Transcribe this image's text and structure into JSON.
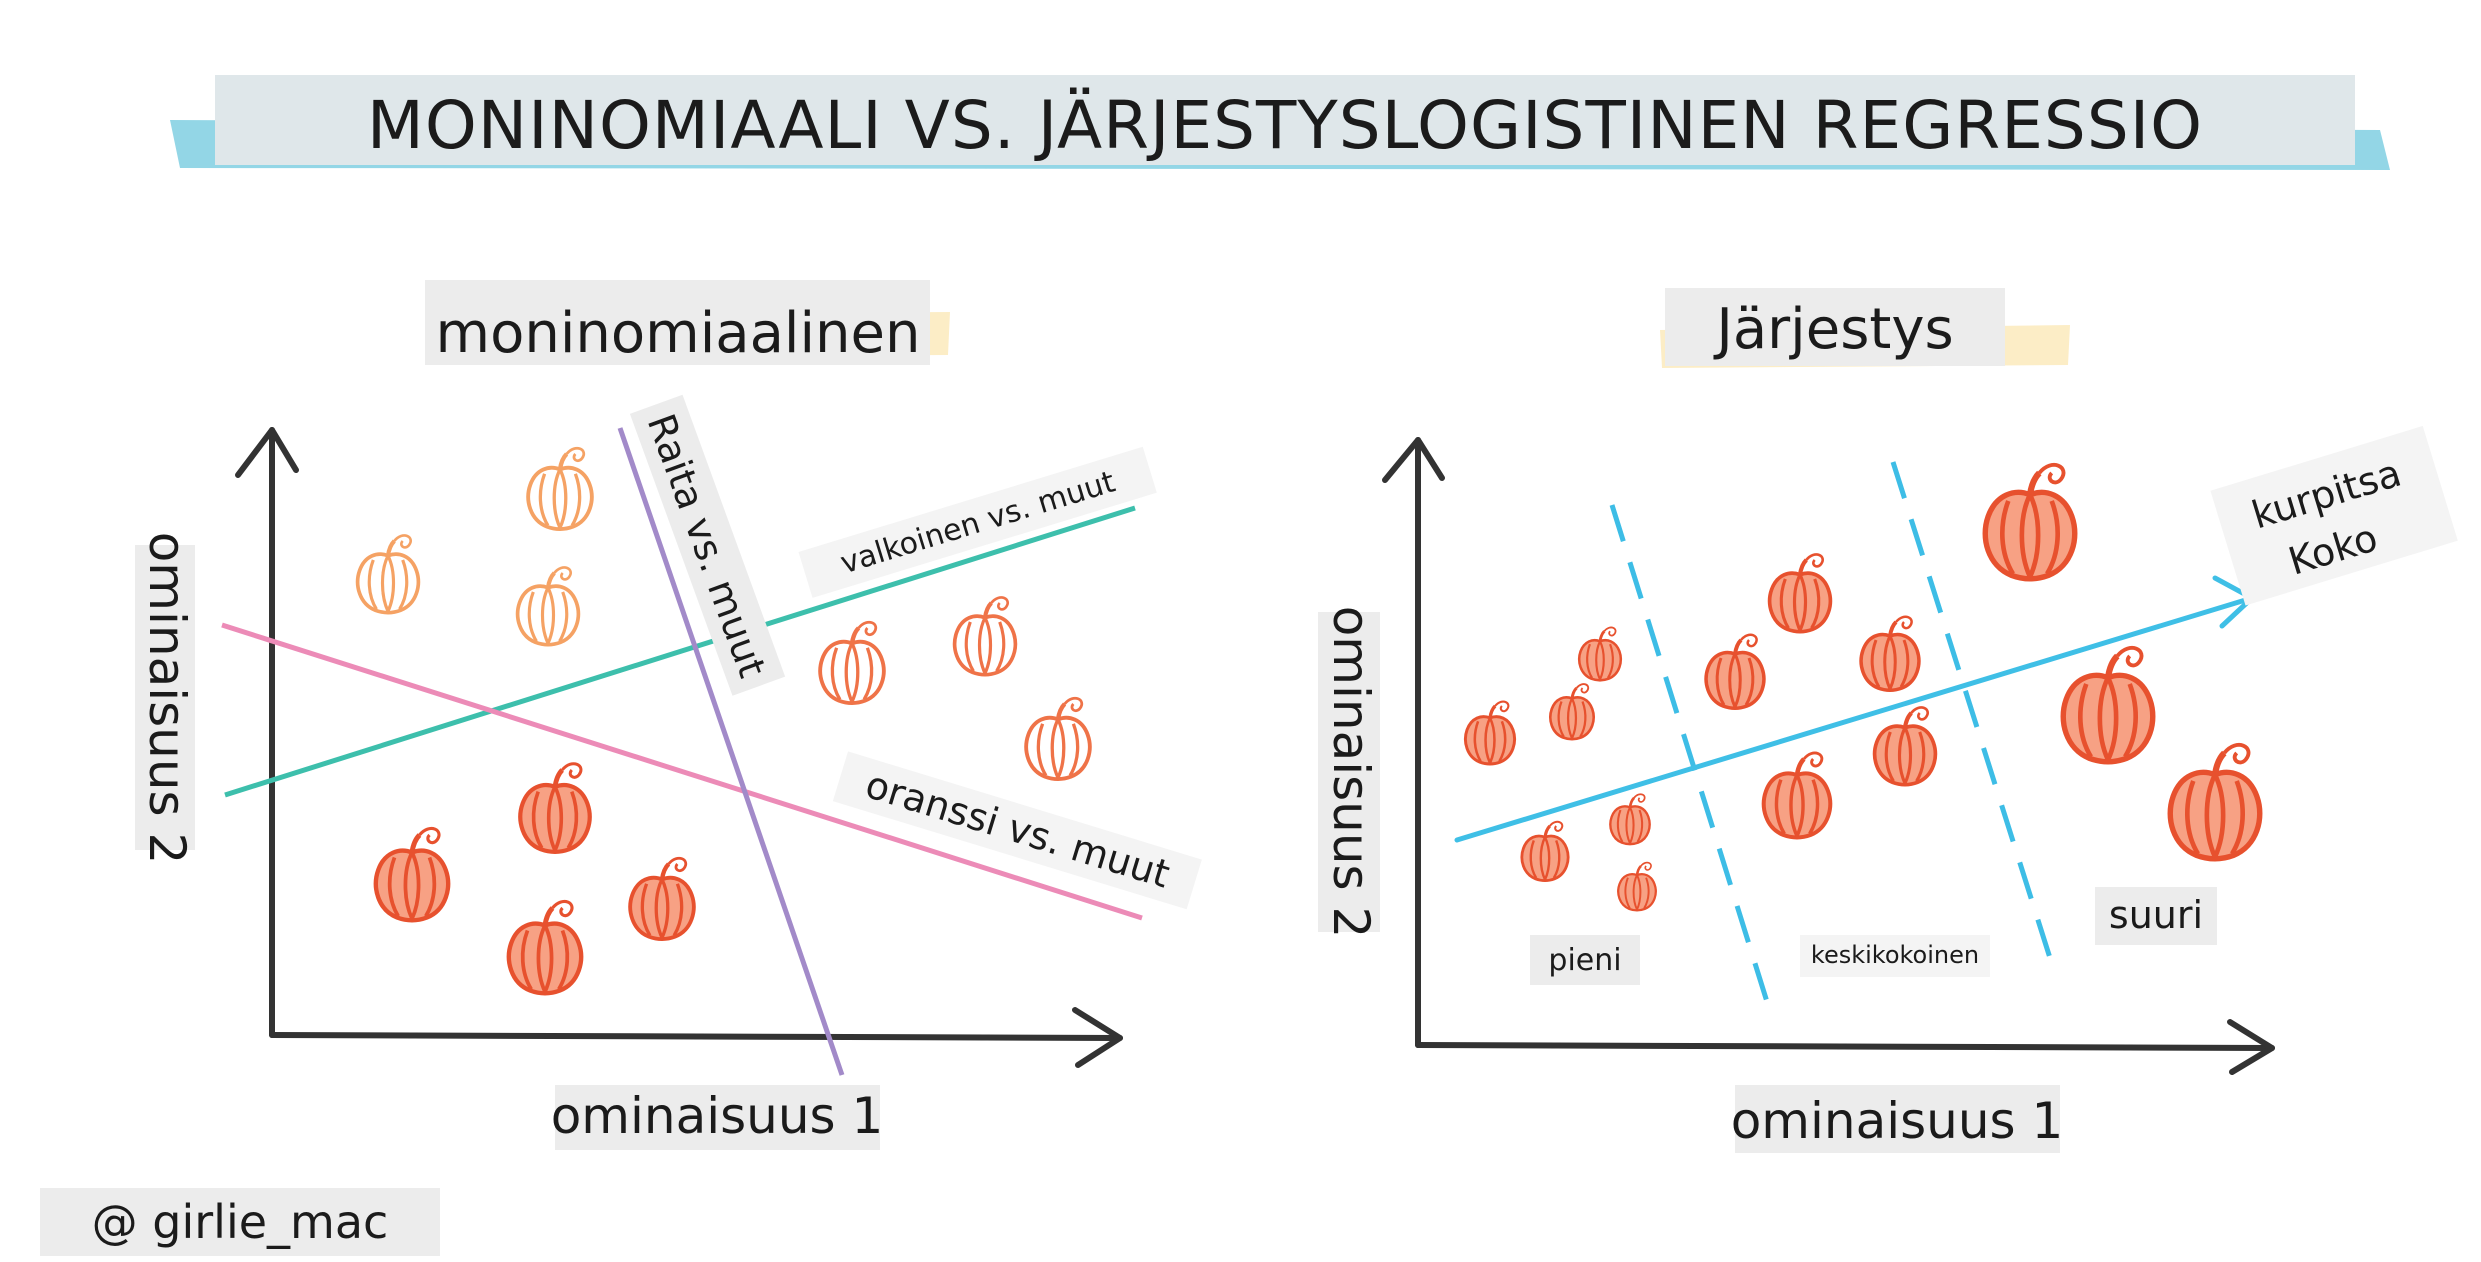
{
  "title": "MONINOMIAALI VS. JÄRJESTYSLOGISTINEN REGRESSIO",
  "left": {
    "heading": "moninomiaalinen",
    "x_axis": "ominaisuus 1",
    "y_axis": "ominaisuus 2",
    "line_striped": "Raita vs. muut",
    "line_white": "valkoinen vs. muut",
    "line_orange": "oranssi vs. muut"
  },
  "right": {
    "heading": "Järjestys",
    "x_axis": "ominaisuus 1",
    "y_axis": "ominaisuus 2",
    "arrow_label_1": "kurpitsa",
    "arrow_label_2": "Koko",
    "size_small": "pieni",
    "size_medium": "keskikokoinen",
    "size_large": "suuri"
  },
  "credit": "@ girlie_mac",
  "colors": {
    "title_bar": "#dfe7ea",
    "title_wash": "#6fc8dd",
    "label_bg": "#ececec",
    "heading_wash": "#fbe8b8",
    "teal_line": "#3dbfac",
    "pink_line": "#ec8bb7",
    "purple_line": "#a28ac9",
    "blue_dash": "#3dbde6",
    "blue_arrow": "#3fbfe6",
    "pumpkin_orange": "#f07a4a",
    "pumpkin_white": "#f5a264",
    "axis": "#333333"
  },
  "icons": [
    "white-pumpkin-icon",
    "orange-pumpkin-icon",
    "striped-pumpkin-icon"
  ]
}
